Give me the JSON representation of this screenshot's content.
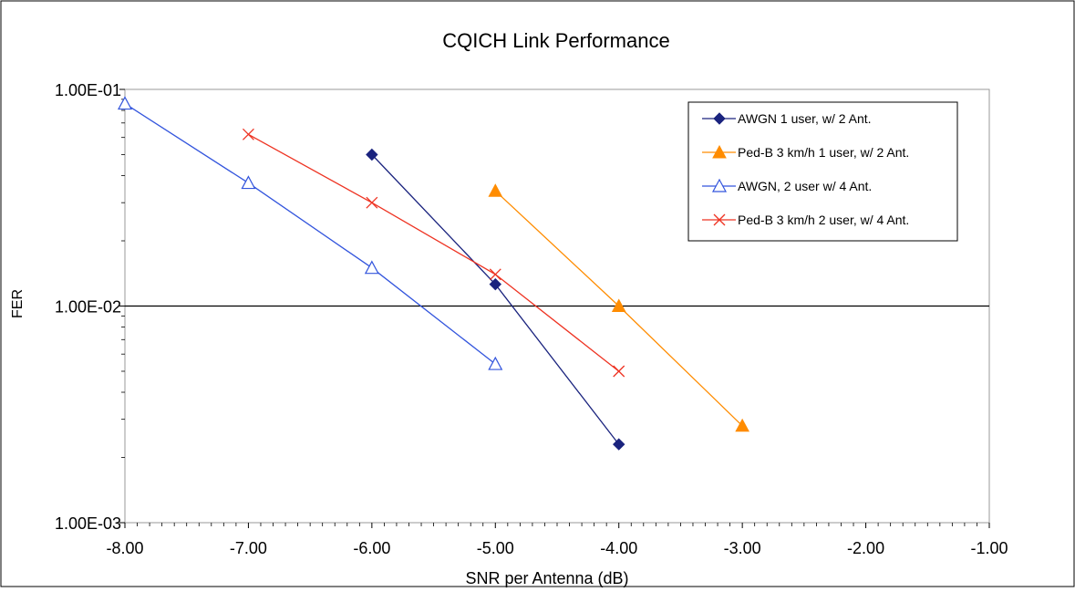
{
  "chart_data": {
    "type": "line",
    "title": "CQICH Link Performance",
    "xlabel": "SNR per Antenna (dB)",
    "ylabel": "FER",
    "x_scale": "linear",
    "y_scale": "log",
    "xlim": [
      -8.0,
      -1.0
    ],
    "ylim": [
      0.001,
      0.1
    ],
    "x_ticks": [
      "-8.00",
      "-7.00",
      "-6.00",
      "-5.00",
      "-4.00",
      "-3.00",
      "-2.00",
      "-1.00"
    ],
    "y_ticks": [
      "1.00E-03",
      "1.00E-02",
      "1.00E-01"
    ],
    "gridlines_y": [
      0.01
    ],
    "legend_position": "top-right",
    "series": [
      {
        "name": "AWGN 1 user, w/ 2 Ant.",
        "color": "#1a237e",
        "marker": "diamond-filled",
        "x": [
          -6.0,
          -5.0,
          -4.0
        ],
        "y": [
          0.05,
          0.0126,
          0.0023
        ]
      },
      {
        "name": "Ped-B 3 km/h 1 user, w/ 2 Ant.",
        "color": "#ff8c00",
        "marker": "triangle-filled",
        "x": [
          -5.0,
          -4.0,
          -3.0
        ],
        "y": [
          0.034,
          0.01,
          0.0028
        ]
      },
      {
        "name": "AWGN, 2 user w/ 4 Ant.",
        "color": "#3355dd",
        "marker": "triangle-open",
        "x": [
          -8.0,
          -7.0,
          -6.0,
          -5.0
        ],
        "y": [
          0.086,
          0.037,
          0.015,
          0.0054
        ]
      },
      {
        "name": "Ped-B 3 km/h 2 user, w/ 4 Ant.",
        "color": "#ee3322",
        "marker": "x",
        "x": [
          -7.0,
          -6.0,
          -5.0,
          -4.0
        ],
        "y": [
          0.062,
          0.03,
          0.014,
          0.005
        ]
      }
    ]
  }
}
